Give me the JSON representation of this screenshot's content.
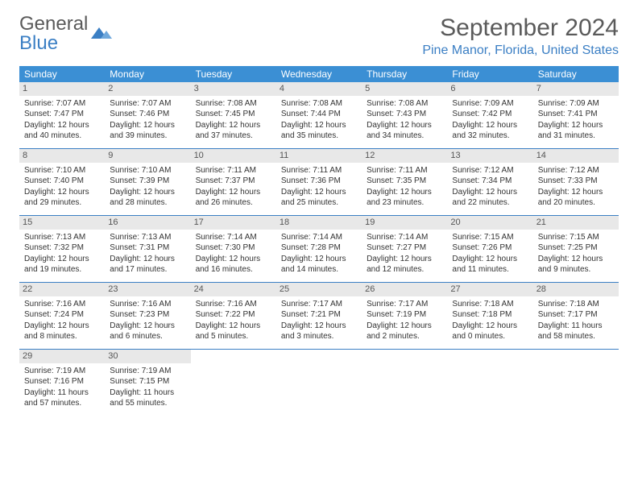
{
  "logo": {
    "text1": "General",
    "text2": "Blue"
  },
  "title": "September 2024",
  "location": "Pine Manor, Florida, United States",
  "colors": {
    "header_bg": "#3b8fd4",
    "accent": "#3b7fc4",
    "daynum_bg": "#e8e8e8",
    "text": "#333333",
    "title_text": "#5a5a5a"
  },
  "weekdays": [
    "Sunday",
    "Monday",
    "Tuesday",
    "Wednesday",
    "Thursday",
    "Friday",
    "Saturday"
  ],
  "weeks": [
    [
      {
        "n": "1",
        "sr": "7:07 AM",
        "ss": "7:47 PM",
        "dl": "12 hours and 40 minutes."
      },
      {
        "n": "2",
        "sr": "7:07 AM",
        "ss": "7:46 PM",
        "dl": "12 hours and 39 minutes."
      },
      {
        "n": "3",
        "sr": "7:08 AM",
        "ss": "7:45 PM",
        "dl": "12 hours and 37 minutes."
      },
      {
        "n": "4",
        "sr": "7:08 AM",
        "ss": "7:44 PM",
        "dl": "12 hours and 35 minutes."
      },
      {
        "n": "5",
        "sr": "7:08 AM",
        "ss": "7:43 PM",
        "dl": "12 hours and 34 minutes."
      },
      {
        "n": "6",
        "sr": "7:09 AM",
        "ss": "7:42 PM",
        "dl": "12 hours and 32 minutes."
      },
      {
        "n": "7",
        "sr": "7:09 AM",
        "ss": "7:41 PM",
        "dl": "12 hours and 31 minutes."
      }
    ],
    [
      {
        "n": "8",
        "sr": "7:10 AM",
        "ss": "7:40 PM",
        "dl": "12 hours and 29 minutes."
      },
      {
        "n": "9",
        "sr": "7:10 AM",
        "ss": "7:39 PM",
        "dl": "12 hours and 28 minutes."
      },
      {
        "n": "10",
        "sr": "7:11 AM",
        "ss": "7:37 PM",
        "dl": "12 hours and 26 minutes."
      },
      {
        "n": "11",
        "sr": "7:11 AM",
        "ss": "7:36 PM",
        "dl": "12 hours and 25 minutes."
      },
      {
        "n": "12",
        "sr": "7:11 AM",
        "ss": "7:35 PM",
        "dl": "12 hours and 23 minutes."
      },
      {
        "n": "13",
        "sr": "7:12 AM",
        "ss": "7:34 PM",
        "dl": "12 hours and 22 minutes."
      },
      {
        "n": "14",
        "sr": "7:12 AM",
        "ss": "7:33 PM",
        "dl": "12 hours and 20 minutes."
      }
    ],
    [
      {
        "n": "15",
        "sr": "7:13 AM",
        "ss": "7:32 PM",
        "dl": "12 hours and 19 minutes."
      },
      {
        "n": "16",
        "sr": "7:13 AM",
        "ss": "7:31 PM",
        "dl": "12 hours and 17 minutes."
      },
      {
        "n": "17",
        "sr": "7:14 AM",
        "ss": "7:30 PM",
        "dl": "12 hours and 16 minutes."
      },
      {
        "n": "18",
        "sr": "7:14 AM",
        "ss": "7:28 PM",
        "dl": "12 hours and 14 minutes."
      },
      {
        "n": "19",
        "sr": "7:14 AM",
        "ss": "7:27 PM",
        "dl": "12 hours and 12 minutes."
      },
      {
        "n": "20",
        "sr": "7:15 AM",
        "ss": "7:26 PM",
        "dl": "12 hours and 11 minutes."
      },
      {
        "n": "21",
        "sr": "7:15 AM",
        "ss": "7:25 PM",
        "dl": "12 hours and 9 minutes."
      }
    ],
    [
      {
        "n": "22",
        "sr": "7:16 AM",
        "ss": "7:24 PM",
        "dl": "12 hours and 8 minutes."
      },
      {
        "n": "23",
        "sr": "7:16 AM",
        "ss": "7:23 PM",
        "dl": "12 hours and 6 minutes."
      },
      {
        "n": "24",
        "sr": "7:16 AM",
        "ss": "7:22 PM",
        "dl": "12 hours and 5 minutes."
      },
      {
        "n": "25",
        "sr": "7:17 AM",
        "ss": "7:21 PM",
        "dl": "12 hours and 3 minutes."
      },
      {
        "n": "26",
        "sr": "7:17 AM",
        "ss": "7:19 PM",
        "dl": "12 hours and 2 minutes."
      },
      {
        "n": "27",
        "sr": "7:18 AM",
        "ss": "7:18 PM",
        "dl": "12 hours and 0 minutes."
      },
      {
        "n": "28",
        "sr": "7:18 AM",
        "ss": "7:17 PM",
        "dl": "11 hours and 58 minutes."
      }
    ],
    [
      {
        "n": "29",
        "sr": "7:19 AM",
        "ss": "7:16 PM",
        "dl": "11 hours and 57 minutes."
      },
      {
        "n": "30",
        "sr": "7:19 AM",
        "ss": "7:15 PM",
        "dl": "11 hours and 55 minutes."
      },
      null,
      null,
      null,
      null,
      null
    ]
  ],
  "labels": {
    "sunrise": "Sunrise:",
    "sunset": "Sunset:",
    "daylight": "Daylight:"
  }
}
